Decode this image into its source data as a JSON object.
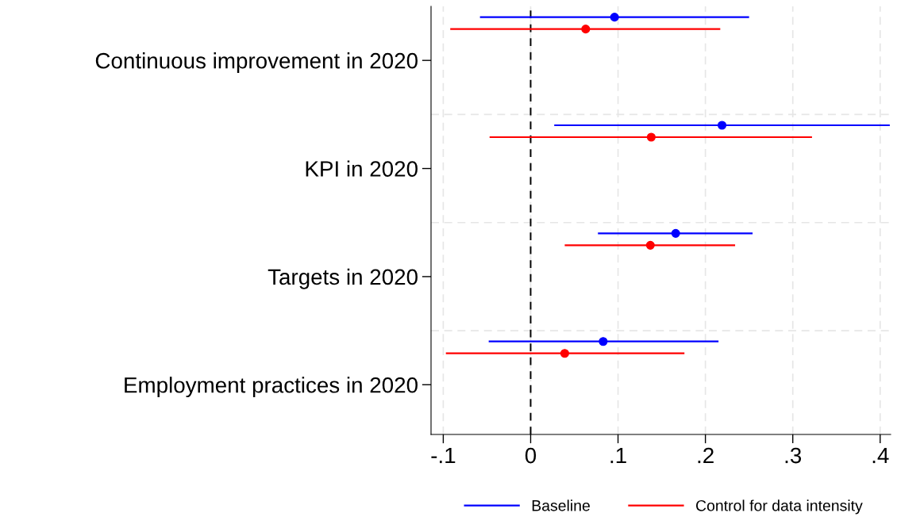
{
  "chart_data": {
    "type": "scatter",
    "orientation": "horizontal",
    "categories": [
      "Continuous improvement in 2020",
      "KPI in 2020",
      "Targets in 2020",
      "Employment practices in 2020"
    ],
    "series": [
      {
        "name": "Baseline",
        "color": "#0000ff",
        "values": [
          0.096,
          0.219,
          0.166,
          0.083
        ],
        "errors": [
          [
            -0.058,
            0.25
          ],
          [
            0.027,
            0.411
          ],
          [
            0.077,
            0.254
          ],
          [
            -0.048,
            0.215
          ]
        ]
      },
      {
        "name": "Control for data intensity",
        "color": "#ff0000",
        "values": [
          0.063,
          0.138,
          0.137,
          0.039
        ],
        "errors": [
          [
            -0.092,
            0.217
          ],
          [
            -0.047,
            0.322
          ],
          [
            0.039,
            0.234
          ],
          [
            -0.097,
            0.176
          ]
        ]
      }
    ],
    "xlim": [
      -0.114,
      0.412
    ],
    "xticks": [
      {
        "value": -0.1,
        "label": "-.1"
      },
      {
        "value": 0,
        "label": "0"
      },
      {
        "value": 0.1,
        "label": ".1"
      },
      {
        "value": 0.2,
        "label": ".2"
      },
      {
        "value": 0.3,
        "label": ".3"
      },
      {
        "value": 0.4,
        "label": ".4"
      }
    ],
    "ref_lines": [
      {
        "axis": "x",
        "value": 0,
        "color": "#000000",
        "line_style": "dashed"
      }
    ],
    "grid": true,
    "legend": "bottom",
    "marker": "circle"
  }
}
